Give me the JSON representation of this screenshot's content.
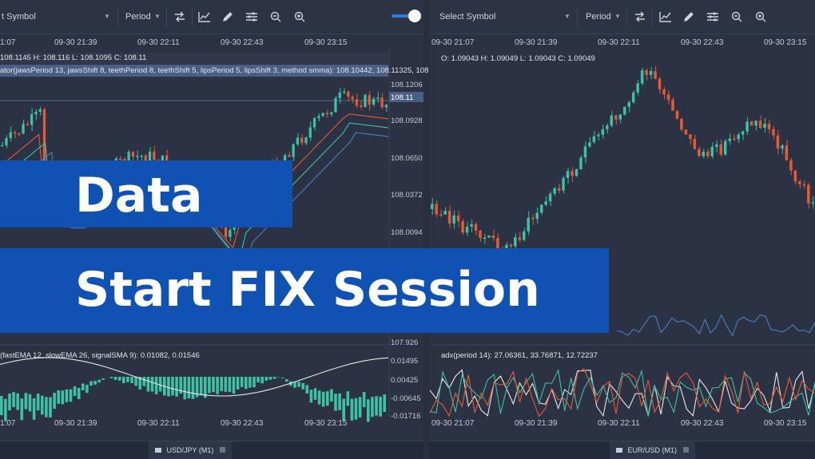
{
  "left": {
    "toolbar": {
      "symbol_text": "t Symbol",
      "period_label": "Period"
    },
    "x_ticks_top": [
      "1:07",
      "09-30 21:39",
      "09-30 22:11",
      "09-30 22:43",
      "09-30 23:15"
    ],
    "x_ticks_bottom": [
      "1:07",
      "09-30 21:39",
      "09-30 22:11",
      "09-30 22:43",
      "09-30 23:15"
    ],
    "ohlc_text": "108.1145 H: 108.116 L: 108.1095 C: 108.11",
    "alligator_text": "ator(jawsPeriod 13, jawsShift 8, teethPeriod 8, teethShift 5, lipsPeriod 5, lipsShift 3, method smma): 108.10442, 108.11325, 108",
    "price_labels": [
      "108.1206",
      "108.0928",
      "108.0650",
      "108.0372",
      "108.0094"
    ],
    "current_price": "108.11",
    "macd_text": "(fastEMA 12, slowEMA 26, signalSMA 9): 0.01082, 0.01546",
    "macd_labels": [
      "107.926",
      "0.01495",
      "0.00425",
      "-0.00645",
      "-0.01716"
    ],
    "symbol_tab": "USD/JPY (M1)"
  },
  "right": {
    "toolbar": {
      "symbol_text": "Select Symbol",
      "period_label": "Period"
    },
    "x_ticks_top": [
      "09-30 21:07",
      "09-30 21:39",
      "09-30 22:11",
      "09-30 22:43",
      "09-30 23:15"
    ],
    "x_ticks_bottom": [
      "09-30 21:07",
      "09-30 21:39",
      "09-30 22:11",
      "09-30 22:43",
      "09-30 23:15"
    ],
    "ohlc_text": "O: 1.09043 H: 1.09049 L: 1.09043 C: 1.09049",
    "adx_text": "adx(period 14): 27.06361, 33.76871, 12.72237",
    "symbol_tab": "EUR/USD (M1)"
  },
  "banner1": "Data",
  "banner2": "Start FIX Session",
  "colors": {
    "up": "#3fc1a5",
    "down": "#e55b36",
    "banner": "#0f52b3",
    "toggle": "#2f7fe0"
  },
  "icons": [
    "swap-icon",
    "line-chart-icon",
    "pencil-icon",
    "settings-lines-icon",
    "zoom-out-icon",
    "zoom-in-icon"
  ]
}
